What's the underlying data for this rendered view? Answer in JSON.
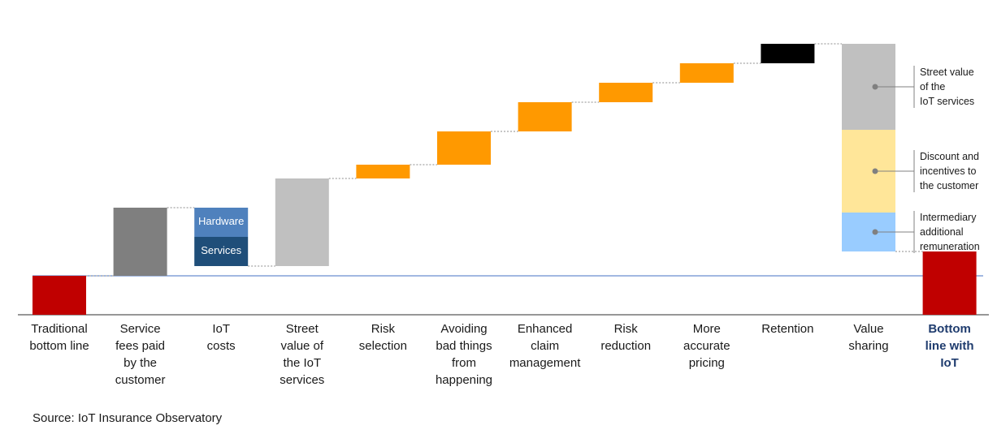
{
  "chart_data": {
    "type": "bar",
    "subtype": "waterfall",
    "title": "",
    "categories": [
      "Traditional\nbottom line",
      "Service\nfees paid\nby the\ncustomer",
      "IoT\ncosts",
      "Street\nvalue of\nthe IoT\nservices",
      "Risk\nselection",
      "Avoiding\nbad things\nfrom\nhappening",
      "Enhanced\nclaim\nmanagement",
      "Risk\nreduction",
      "More\naccurate\npricing",
      "Retention",
      "Value\nsharing",
      "Bottom\nline with\nIoT"
    ],
    "emphasized_category": 11,
    "bars": [
      {
        "base": 0,
        "top": 48,
        "color": "#c00000"
      },
      {
        "base": 48,
        "top": 132,
        "color": "#7f7f7f"
      },
      {
        "base": 60,
        "top": 132,
        "color": null,
        "stack": [
          {
            "name": "Services",
            "base": 60,
            "top": 96,
            "color": "#1f4e79"
          },
          {
            "name": "Hardware",
            "base": 96,
            "top": 132,
            "color": "#4f81bd"
          }
        ]
      },
      {
        "base": 60,
        "top": 168,
        "color": "#c0c0c0"
      },
      {
        "base": 168,
        "top": 185,
        "color": "#ff9900"
      },
      {
        "base": 185,
        "top": 226,
        "color": "#ff9900"
      },
      {
        "base": 226,
        "top": 262,
        "color": "#ff9900"
      },
      {
        "base": 262,
        "top": 286,
        "color": "#ff9900"
      },
      {
        "base": 286,
        "top": 310,
        "color": "#ff9900"
      },
      {
        "base": 310,
        "top": 334,
        "color": "#000000"
      },
      {
        "base": 78,
        "top": 334,
        "color": null,
        "stack": [
          {
            "name": "Intermediary additional remuneration",
            "base": 78,
            "top": 126,
            "color": "#99ccff"
          },
          {
            "name": "Discount and incentives to the customer",
            "base": 126,
            "top": 228,
            "color": "#ffe699"
          },
          {
            "name": "Street value of the IoT services",
            "base": 228,
            "top": 334,
            "color": "#c0c0c0"
          }
        ]
      },
      {
        "base": 0,
        "top": 78,
        "color": "#c00000"
      }
    ],
    "segment_labels": {
      "hardware": "Hardware",
      "services": "Services"
    },
    "annotations": [
      {
        "text": "Street value\nof the\nIoT services"
      },
      {
        "text": "Discount and\nincentives to\nthe customer"
      },
      {
        "text": "Intermediary\nadditional\nremuneration"
      }
    ],
    "reference_line_value": 48,
    "connector_lines": "dotted",
    "ylim": [
      0,
      334
    ],
    "xlabel": "",
    "ylabel": "",
    "grid": false,
    "legend": "none"
  },
  "source": "Source: IoT Insurance Observatory"
}
